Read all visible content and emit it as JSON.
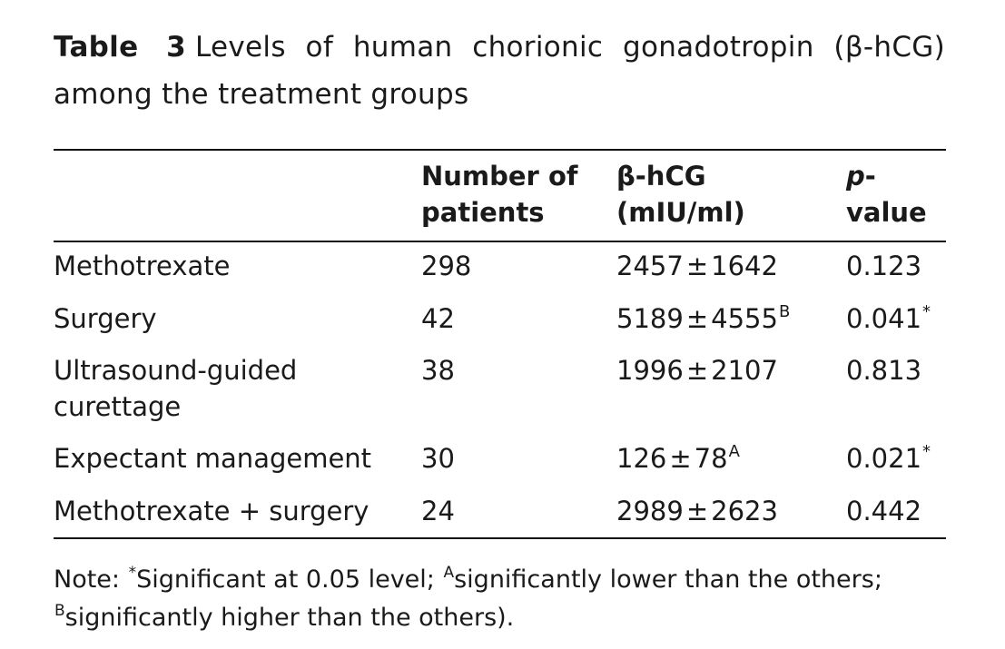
{
  "caption": {
    "label": "Table 3",
    "text": "Levels of human chorionic gonadotropin (β-hCG) among the treatment groups"
  },
  "table": {
    "headers": {
      "group": "",
      "patients": "Number of patients",
      "bhcg": "β-hCG (mIU/ml)",
      "p_italic": "p",
      "p_rest": "-value"
    },
    "rows": [
      {
        "group": "Methotrexate",
        "patients": "298",
        "mean": "2457",
        "pm": "±",
        "sd": "1642",
        "sup": "",
        "p": "0.123",
        "p_sup": ""
      },
      {
        "group": "Surgery",
        "patients": "42",
        "mean": "5189",
        "pm": "±",
        "sd": "4555",
        "sup": "B",
        "p": "0.041",
        "p_sup": "*"
      },
      {
        "group_line1": "Ultrasound-guided",
        "group_line2": "curettage",
        "patients": "38",
        "mean": "1996",
        "pm": "±",
        "sd": "2107",
        "sup": "",
        "p": "0.813",
        "p_sup": ""
      },
      {
        "group": "Expectant management",
        "patients": "30",
        "mean": "126",
        "pm": "±",
        "sd": "78",
        "sup": "A",
        "p": "0.021",
        "p_sup": "*"
      },
      {
        "group": "Methotrexate + surgery",
        "patients": "24",
        "mean": "2989",
        "pm": "±",
        "sd": "2623",
        "sup": "",
        "p": "0.442",
        "p_sup": ""
      }
    ]
  },
  "note": {
    "prefix": "Note: ",
    "sup_star": "*",
    "text1": "Significant at 0.05 level; ",
    "sup_a": "A",
    "text2": "significantly lower than the others; ",
    "sup_b": "B",
    "text3": "significantly higher than the others)."
  }
}
